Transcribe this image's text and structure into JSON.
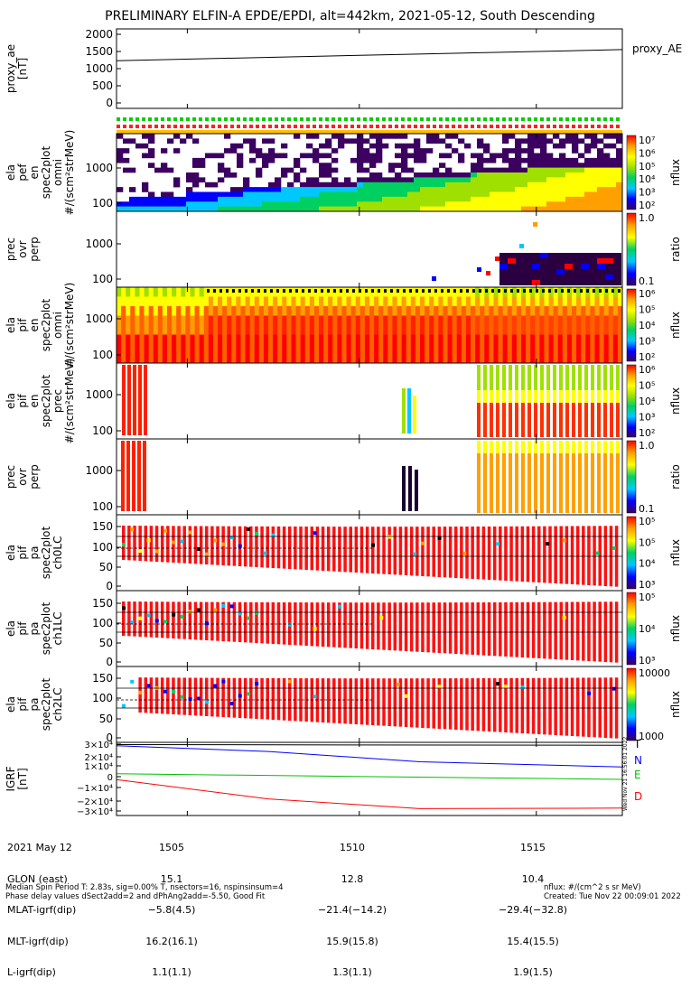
{
  "title": "PRELIMINARY ELFIN-A EPDE/EPDI, alt=442km, 2021-05-12, South Descending",
  "chart_data": {
    "type": "heatmap",
    "x_ticks": [
      "1505",
      "1510",
      "1515"
    ],
    "panels": [
      {
        "id": "proxy_ae",
        "type": "line",
        "ylabel": [
          "proxy_ae",
          "[nT]"
        ],
        "ylim": [
          0,
          2000
        ],
        "yticks": [
          "2000",
          "1500",
          "1000",
          "500",
          "0"
        ],
        "legend": "proxy_AE",
        "series": [
          {
            "name": "proxy_AE",
            "x": [
              0,
              1
            ],
            "y": [
              1200,
              1480
            ]
          }
        ]
      },
      {
        "id": "epde_omni",
        "type": "heatmap",
        "ylabel": [
          "ela",
          "pef",
          "en",
          "spec2plot",
          "omni",
          "#/(scm²strMeV)"
        ],
        "yscale": "log",
        "yticks": [
          "1000",
          "100"
        ],
        "colorbar": {
          "label": "nflux",
          "ticks": [
            "10⁷",
            "10⁶",
            "10⁵",
            "10⁴",
            "10³",
            "10²"
          ]
        }
      },
      {
        "id": "epde_ratio",
        "type": "heatmap",
        "ylabel": [
          "prec",
          "ovr",
          "perp"
        ],
        "yscale": "log",
        "yticks": [
          "1000",
          "100"
        ],
        "colorbar": {
          "label": "ratio",
          "ticks": [
            "1.0",
            "0.1"
          ]
        }
      },
      {
        "id": "epdi_omni",
        "type": "heatmap",
        "ylabel": [
          "ela",
          "pif",
          "en",
          "spec2plot",
          "omni",
          "#/(scm²strMeV)"
        ],
        "yscale": "log",
        "yticks": [
          "1000",
          "100"
        ],
        "colorbar": {
          "label": "nflux",
          "ticks": [
            "10⁶",
            "10⁵",
            "10⁴",
            "10³",
            "10²"
          ]
        }
      },
      {
        "id": "epdi_prec",
        "type": "heatmap",
        "ylabel": [
          "ela",
          "pif",
          "en",
          "spec2plot",
          "prec",
          "#/(scm²strMeV)"
        ],
        "yscale": "log",
        "yticks": [
          "1000",
          "100"
        ],
        "colorbar": {
          "label": "nflux",
          "ticks": [
            "10⁶",
            "10⁵",
            "10⁴",
            "10³",
            "10²"
          ]
        }
      },
      {
        "id": "epdi_ratio",
        "type": "heatmap",
        "ylabel": [
          "prec",
          "ovr",
          "perp"
        ],
        "yscale": "log",
        "yticks": [
          "1000",
          "100"
        ],
        "colorbar": {
          "label": "ratio",
          "ticks": [
            "1.0",
            "0.1"
          ]
        }
      },
      {
        "id": "pa_ch0",
        "type": "heatmap",
        "ylabel": [
          "ela",
          "pif",
          "pa",
          "spec2plot",
          "ch0LC"
        ],
        "ylim": [
          0,
          180
        ],
        "yticks": [
          "150",
          "100",
          "50",
          "0"
        ],
        "colorbar": {
          "label": "nflux",
          "ticks": [
            "10⁵",
            "10⁵",
            "10⁴",
            "10³"
          ]
        }
      },
      {
        "id": "pa_ch1",
        "type": "heatmap",
        "ylabel": [
          "ela",
          "pif",
          "pa",
          "spec2plot",
          "ch1LC"
        ],
        "ylim": [
          0,
          180
        ],
        "yticks": [
          "150",
          "100",
          "50",
          "0"
        ],
        "colorbar": {
          "label": "nflux",
          "ticks": [
            "10⁵",
            "10⁴",
            "10³"
          ]
        }
      },
      {
        "id": "pa_ch2",
        "type": "heatmap",
        "ylabel": [
          "ela",
          "pif",
          "pa",
          "spec2plot",
          "ch2LC"
        ],
        "ylim": [
          0,
          180
        ],
        "yticks": [
          "150",
          "100",
          "50",
          "0"
        ],
        "colorbar": {
          "label": "nflux",
          "ticks": [
            "10000",
            "1000"
          ]
        }
      },
      {
        "id": "igrf",
        "type": "line",
        "ylabel": [
          "IGRF",
          "[nT]"
        ],
        "ylim": [
          -32000,
          32000
        ],
        "yticks": [
          "3×10⁴",
          "2×10⁴",
          "1×10⁴",
          "0",
          "−1×10⁴",
          "−2×10⁴",
          "−3×10⁴"
        ],
        "series": [
          {
            "name": "T",
            "color": "#000000",
            "x": [
              0,
              1
            ],
            "y": [
              30000,
              29500
            ]
          },
          {
            "name": "N",
            "color": "#0000ff",
            "x": [
              0,
              0.3,
              0.6,
              1
            ],
            "y": [
              29000,
              24000,
              15000,
              10500
            ]
          },
          {
            "name": "E",
            "color": "#00c000",
            "x": [
              0,
              1
            ],
            "y": [
              4500,
              -400
            ]
          },
          {
            "name": "D",
            "color": "#ff0000",
            "x": [
              0,
              0.3,
              0.6,
              1
            ],
            "y": [
              -600,
              -17500,
              -26000,
              -25500
            ]
          }
        ]
      }
    ]
  },
  "footer": {
    "labels": [
      "2021 May 12",
      "GLON (east)",
      "MLAT-igrf(dip)",
      "MLT-igrf(dip)",
      "L-igrf(dip)"
    ],
    "col1": [
      "1505",
      "15.1",
      "−5.8(4.5)",
      "16.2(16.1)",
      "1.1(1.1)"
    ],
    "col2": [
      "1510",
      "12.8",
      "−21.4(−14.2)",
      "15.9(15.8)",
      "1.3(1.1)"
    ],
    "col3": [
      "1515",
      "10.4",
      "−29.4(−32.8)",
      "15.4(15.5)",
      "1.9(1.5)"
    ]
  },
  "notes": {
    "left": "Median Spin Period T: 2.83s, sig=0.00% T, nsectors=16, nspinsinsum=4\nPhase delay values dSect2add=2 and dPhAng2add=-5.50, Good Fit",
    "right": "nflux: #/(cm^2 s sr MeV)\nCreated: Tue Nov 22 00:09:01 2022",
    "stamp": "Wed Nov 21 16:56:01 2022"
  },
  "colors": {
    "spectrum": [
      "#3b0060",
      "#0000ff",
      "#00c8ff",
      "#00d060",
      "#a0e000",
      "#ffff00",
      "#ffa000",
      "#ff0000"
    ]
  }
}
